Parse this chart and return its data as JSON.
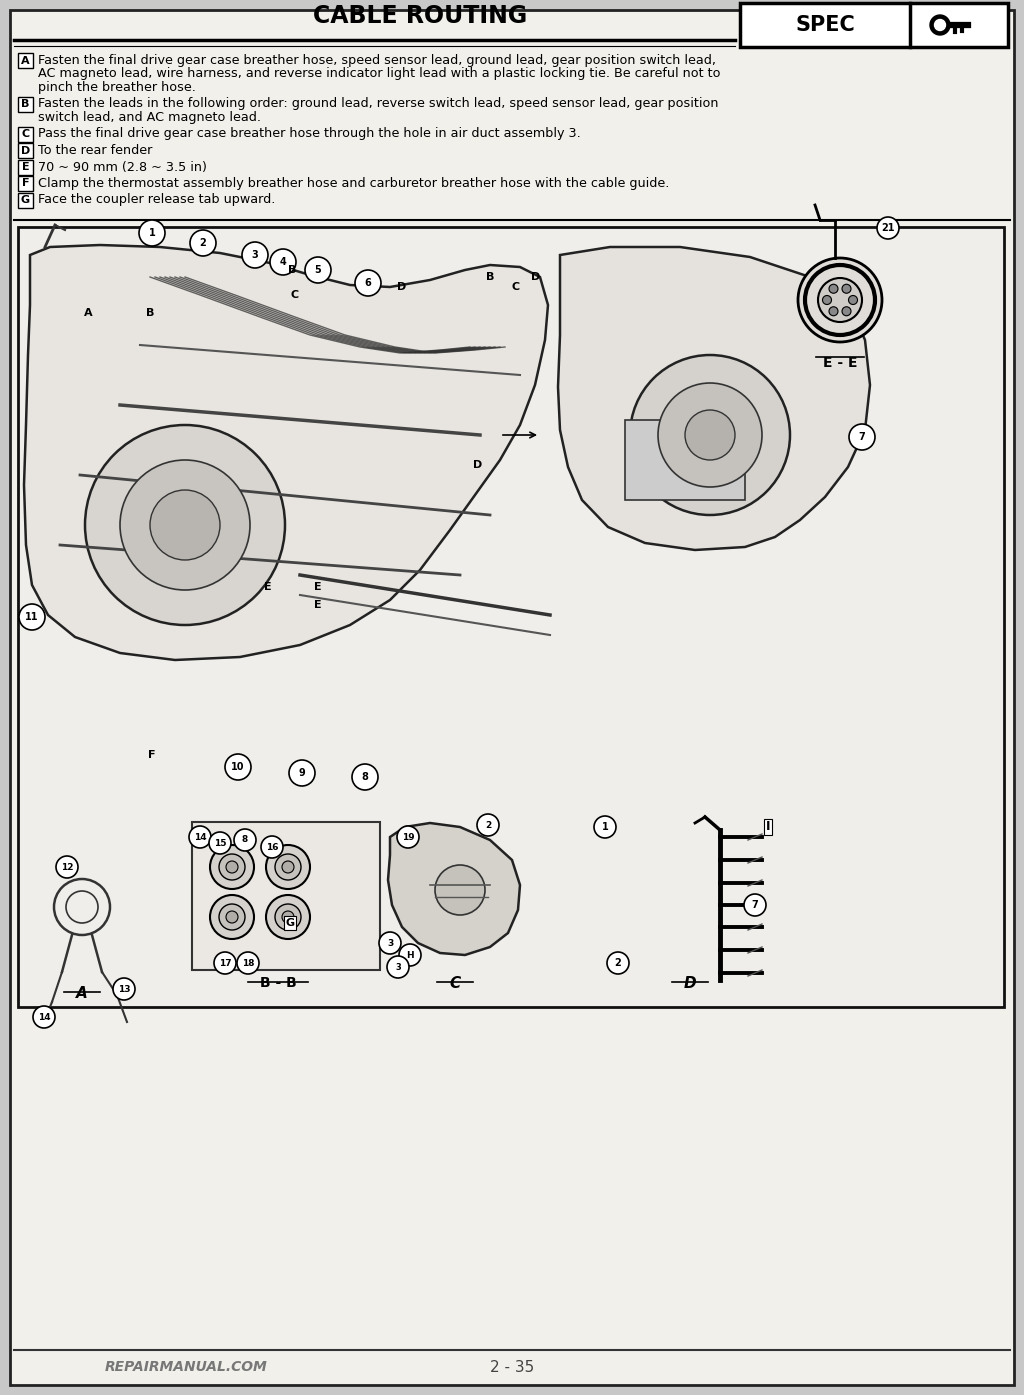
{
  "title": "CABLE ROUTING",
  "spec_label": "SPEC",
  "page_number": "2 - 35",
  "website": "REPAIRMANUAL.COM",
  "bg_color": "#c8c8c8",
  "page_bg": "#f2f0eb",
  "instructions": [
    {
      "label": "A",
      "text": "Fasten the final drive gear case breather hose, speed sensor lead, ground lead, gear position switch lead,\nAC magneto lead, wire harness, and reverse indicator light lead with a plastic locking tie. Be careful not to\npinch the breather hose."
    },
    {
      "label": "B",
      "text": "Fasten the leads in the following order: ground lead, reverse switch lead, speed sensor lead, gear position\nswitch lead, and AC magneto lead."
    },
    {
      "label": "C",
      "text": "Pass the final drive gear case breather hose through the hole in air duct assembly 3."
    },
    {
      "label": "D",
      "text": "To the rear fender"
    },
    {
      "label": "E",
      "text": "70 ~ 90 mm (2.8 ~ 3.5 in)"
    },
    {
      "label": "F",
      "text": "Clamp the thermostat assembly breather hose and carburetor breather hose with the cable guide."
    },
    {
      "label": "G",
      "text": "Face the coupler release tab upward."
    }
  ],
  "title_fontsize": 17,
  "instr_fontsize": 9.2,
  "label_fontsize": 9.2
}
